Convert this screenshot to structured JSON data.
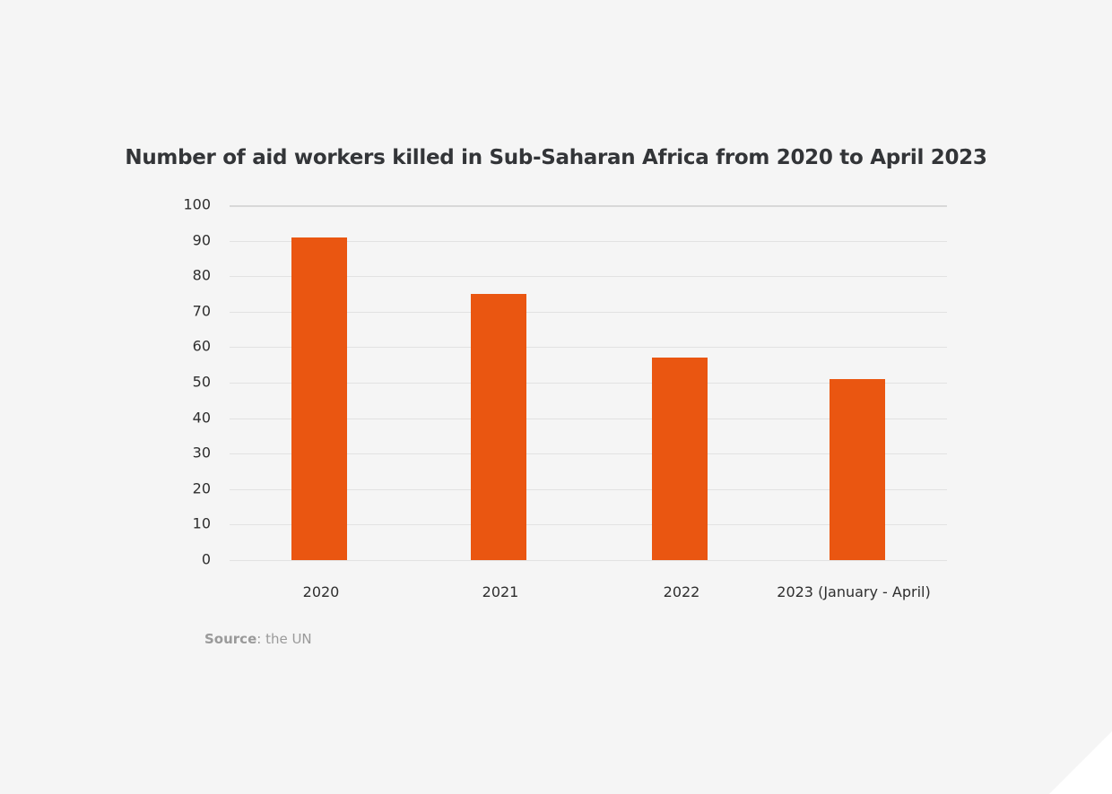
{
  "chart_data": {
    "type": "bar",
    "title": "Number of aid workers killed in Sub-Saharan Africa from 2020 to April 2023",
    "categories": [
      "2020",
      "2021",
      "2022",
      "2023 (January - April)"
    ],
    "values": [
      91,
      75,
      57,
      51
    ],
    "xlabel": "",
    "ylabel": "",
    "ylim": [
      0,
      100
    ],
    "yticks": [
      "0",
      "10",
      "20",
      "30",
      "40",
      "50",
      "60",
      "70",
      "80",
      "90",
      "100"
    ],
    "grid": true,
    "legend": null,
    "bar_color": "#ea5611"
  },
  "source": {
    "label": "Source",
    "text": ": the UN"
  }
}
